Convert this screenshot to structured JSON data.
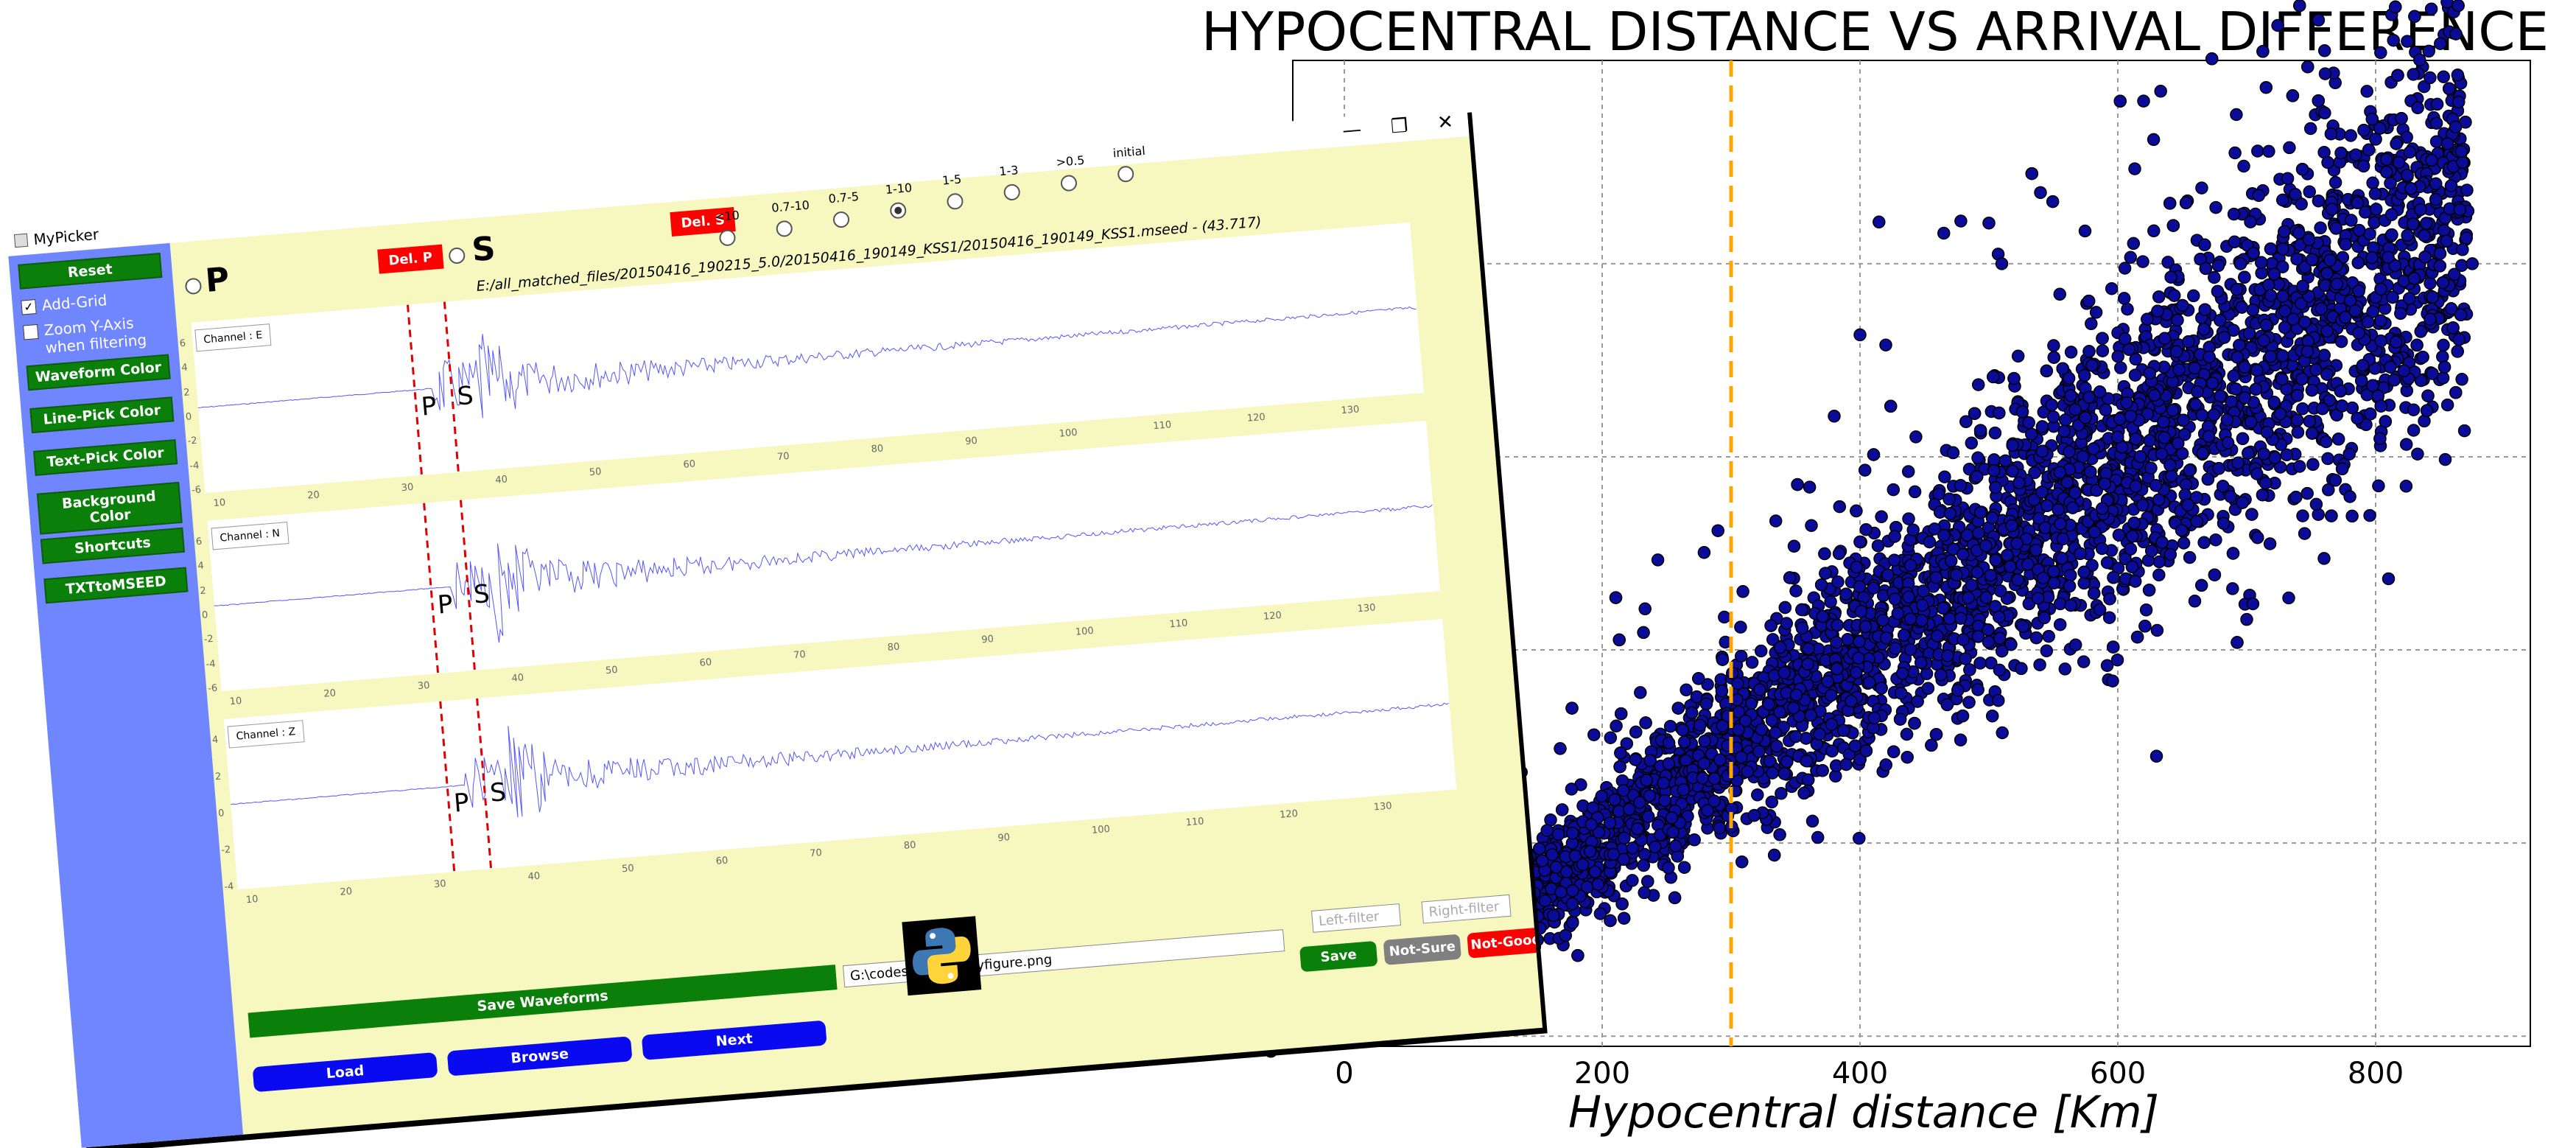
{
  "chart_data": {
    "type": "scatter",
    "title": "HYPOCENTRAL DISTANCE VS ARRIVAL DIFFERENCE",
    "xlabel": "Hypocentral distance [Km]",
    "ylabel": "",
    "xticks": [
      "0",
      "200",
      "400",
      "600",
      "800"
    ],
    "ytick_visible": "0",
    "xlim": [
      -40,
      920
    ],
    "grid": true,
    "marker_color": "#0b0b9a",
    "vline": {
      "x": 300,
      "color": "#ffa500",
      "style": "dashed"
    },
    "trend": {
      "slope": 0.0937,
      "description_points": [
        [
          0,
          0
        ],
        [
          200,
          18
        ],
        [
          400,
          37
        ],
        [
          600,
          56
        ],
        [
          800,
          75
        ]
      ]
    },
    "outliers": [
      [
        620,
        92
      ],
      [
        540,
        83
      ],
      [
        500,
        80
      ],
      [
        465,
        79
      ],
      [
        510,
        76
      ],
      [
        555,
        73
      ],
      [
        400,
        69
      ],
      [
        420,
        68
      ],
      [
        770,
        74
      ],
      [
        790,
        66
      ],
      [
        580,
        66
      ],
      [
        610,
        61
      ],
      [
        850,
        77
      ],
      [
        875,
        76
      ],
      [
        380,
        61
      ],
      [
        700,
        41
      ],
      [
        760,
        47
      ],
      [
        810,
        45
      ]
    ]
  },
  "app": {
    "window_title": "MyPicker",
    "controls": {
      "minimize": "—",
      "restore": "❐",
      "close": "✕"
    },
    "sidebar": {
      "reset": "Reset",
      "add_grid": "Add-Grid",
      "zoom_y": "Zoom Y-Axis when filtering",
      "waveform_color": "Waveform Color",
      "line_pick_color": "Line-Pick Color",
      "text_pick_color": "Text-Pick Color",
      "background_color": "Background Color",
      "shortcuts": "Shortcuts",
      "txt_to_mseed": "TXTtoMSEED"
    },
    "del_p": "Del. P",
    "del_s": "Del. S",
    "p_label": "P",
    "s_label": "S",
    "radios": [
      "<10",
      "0.7-10",
      "0.7-5",
      "1-10",
      "1-5",
      "1-3",
      ">0.5",
      "initial"
    ],
    "selected_radio": "1-10",
    "file_path": "E:/all_matched_files/20150416_190215_5.0/20150416_190149_KSS1/20150416_190149_KSS1.mseed - (43.717)",
    "channels": [
      {
        "name": "Channel : E"
      },
      {
        "name": "Channel : N"
      },
      {
        "name": "Channel : Z"
      }
    ],
    "y_ticks": [
      "6",
      "4",
      "2",
      "0",
      "-2",
      "-4",
      "-6"
    ],
    "y_ticks_z": [
      "4",
      "2",
      "0",
      "-2",
      "-4"
    ],
    "x_ticks": [
      "10",
      "20",
      "30",
      "40",
      "50",
      "60",
      "70",
      "80",
      "90",
      "100",
      "110",
      "120",
      "130"
    ],
    "pick_p": "P",
    "pick_s": "S",
    "save_waveforms": "Save Waveforms",
    "output_path": "G:\\codes\\master\\myfigure.png",
    "left_filter_ph": "Left-filter",
    "right_filter_ph": "Right-filter",
    "load": "Load",
    "browse": "Browse",
    "next": "Next",
    "save": "Save",
    "not_sure": "Not-Sure",
    "not_good": "Not-Good",
    "colors": {
      "green": "#0a7f0a",
      "red": "#ff0000",
      "blue": "#0a0af0",
      "sidebar": "#6f86ff",
      "bg": "#f7f8c0",
      "gray": "#808080"
    }
  }
}
